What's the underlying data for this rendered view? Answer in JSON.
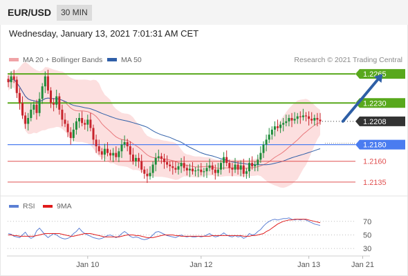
{
  "header": {
    "symbol": "EUR/USD",
    "timeframe": "30 MIN"
  },
  "datetime": "Wednesday, January 13, 2021 7:01:31 AM CET",
  "legend": {
    "ma20": "MA 20 + Bollinger Bands",
    "ma50": "MA 50",
    "rsi": "RSI",
    "rsi_ma": "9MA",
    "copyright": "Research © 2021 Trading Central"
  },
  "colors": {
    "candle_up": "#1e8c3a",
    "candle_down": "#c8252d",
    "ma20": "#e8787c",
    "bollinger_fill": "#fbd9d9",
    "ma50": "#2f5fa8",
    "resistance": "#58a81c",
    "current_price": "#333333",
    "pivot": "#4a7cf0",
    "support": "#e05050",
    "rsi": "#5b7fd4",
    "rsi_ma": "#e01b1b",
    "arrow": "#2e5fa6"
  },
  "chart_data": [
    {
      "type": "candlestick",
      "instrument": "EUR/USD",
      "interval": "30 MIN",
      "ylim": [
        1.212,
        1.2275
      ],
      "x_ticks": [
        {
          "label": "Jan 10",
          "index": 28
        },
        {
          "label": "Jan 12",
          "index": 68
        },
        {
          "label": "Jan 13",
          "index": 106
        },
        {
          "label": "Jan 21",
          "index": 125
        }
      ],
      "levels": [
        {
          "label": "1.2265",
          "value": 1.2265,
          "kind": "resistance"
        },
        {
          "label": "1.2230",
          "value": 1.223,
          "kind": "resistance"
        },
        {
          "label": "1.2208",
          "value": 1.2208,
          "kind": "current"
        },
        {
          "label": "1.2180",
          "value": 1.218,
          "kind": "pivot"
        },
        {
          "label": "1.2160",
          "value": 1.216,
          "kind": "support"
        },
        {
          "label": "1.2135",
          "value": 1.2135,
          "kind": "support"
        }
      ],
      "projection": {
        "from": {
          "index": 118,
          "value": 1.2208
        },
        "to": {
          "index": 132,
          "value": 1.2265
        }
      },
      "close": [
        1.2255,
        1.2262,
        1.2258,
        1.2242,
        1.223,
        1.2215,
        1.2205,
        1.2212,
        1.2222,
        1.2228,
        1.2218,
        1.2235,
        1.225,
        1.2262,
        1.2245,
        1.223,
        1.2228,
        1.2238,
        1.2222,
        1.221,
        1.2205,
        1.2195,
        1.2188,
        1.2198,
        1.2208,
        1.2212,
        1.2206,
        1.2204,
        1.221,
        1.22,
        1.2186,
        1.2178,
        1.2172,
        1.2168,
        1.2175,
        1.217,
        1.2167,
        1.217,
        1.2165,
        1.2172,
        1.218,
        1.2183,
        1.2178,
        1.2168,
        1.216,
        1.2164,
        1.216,
        1.215,
        1.2145,
        1.2142,
        1.2146,
        1.2156,
        1.2164,
        1.2166,
        1.2163,
        1.2159,
        1.2156,
        1.2154,
        1.2152,
        1.215,
        1.2154,
        1.2158,
        1.2152,
        1.2149,
        1.2151,
        1.2148,
        1.2149,
        1.215,
        1.2147,
        1.2148,
        1.2152,
        1.2155,
        1.215,
        1.2146,
        1.215,
        1.2158,
        1.2165,
        1.2158,
        1.2152,
        1.215,
        1.2156,
        1.215,
        1.2155,
        1.2145,
        1.2148,
        1.2158,
        1.2154,
        1.2156,
        1.2162,
        1.217,
        1.218,
        1.2186,
        1.2192,
        1.2198,
        1.2202,
        1.22,
        1.2204,
        1.2206,
        1.2208,
        1.2212,
        1.2209,
        1.2211,
        1.2214,
        1.2213,
        1.2215,
        1.2214,
        1.2211,
        1.2209,
        1.2212,
        1.221,
        1.2208
      ],
      "rsi_ylim": [
        20,
        85
      ],
      "rsi_levels": [
        70,
        50,
        30
      ],
      "rsi": [
        52,
        51,
        48,
        47,
        46,
        50,
        54,
        48,
        45,
        47,
        56,
        60,
        55,
        50,
        46,
        49,
        52,
        50,
        47,
        45,
        44,
        45,
        47,
        52,
        55,
        60,
        55,
        52,
        50,
        48,
        46,
        45,
        44,
        45,
        47,
        49,
        50,
        48,
        46,
        48,
        52,
        55,
        52,
        48,
        46,
        47,
        46,
        44,
        43,
        44,
        46,
        50,
        54,
        55,
        53,
        51,
        49,
        48,
        47,
        46,
        48,
        50,
        48,
        47,
        48,
        47,
        47,
        48,
        47,
        48,
        50,
        52,
        49,
        47,
        48,
        50,
        53,
        50,
        48,
        47,
        49,
        47,
        48,
        45,
        47,
        52,
        50,
        51,
        55,
        58,
        63,
        67,
        70,
        72,
        73,
        72,
        73,
        74,
        74,
        75,
        73,
        72,
        73,
        72,
        73,
        72,
        70,
        68,
        66,
        65,
        64
      ],
      "rsi_ma": [
        50,
        50,
        49,
        49,
        48,
        48,
        48,
        48,
        48,
        48,
        49,
        50,
        51,
        52,
        52,
        52,
        52,
        52,
        52,
        51,
        50,
        49,
        48,
        48,
        49,
        50,
        51,
        52,
        52,
        52,
        51,
        50,
        49,
        48,
        47,
        47,
        47,
        47,
        47,
        47,
        48,
        49,
        50,
        50,
        50,
        49,
        49,
        48,
        47,
        46,
        46,
        46,
        47,
        48,
        49,
        50,
        50,
        50,
        50,
        49,
        49,
        48,
        48,
        48,
        48,
        48,
        48,
        48,
        48,
        48,
        48,
        48,
        49,
        49,
        49,
        49,
        49,
        49,
        49,
        49,
        49,
        49,
        49,
        48,
        48,
        48,
        49,
        49,
        50,
        51,
        52,
        55,
        57,
        60,
        63,
        66,
        68,
        70,
        71,
        72,
        72,
        73,
        73,
        73,
        73,
        73,
        72,
        71,
        70,
        69,
        68
      ]
    }
  ]
}
